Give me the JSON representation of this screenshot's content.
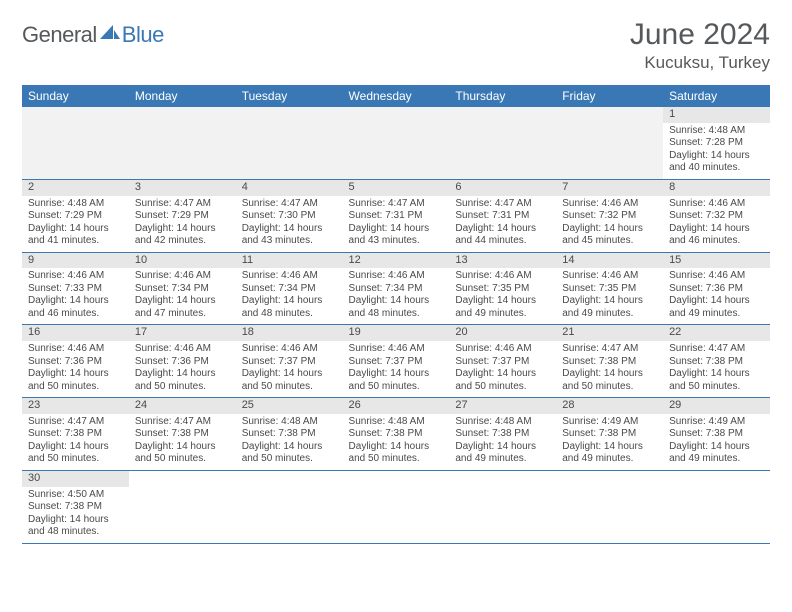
{
  "logo": {
    "text1": "General",
    "text2": "Blue"
  },
  "title": "June 2024",
  "location": "Kucuksu, Turkey",
  "colors": {
    "header_bg": "#3a78b5",
    "header_text": "#ffffff",
    "daynum_bg": "#e7e7e7",
    "border": "#3a78b5",
    "logo_gray": "#56595c",
    "logo_blue": "#3a78b5",
    "body_text": "#4a4a4a"
  },
  "weekdays": [
    "Sunday",
    "Monday",
    "Tuesday",
    "Wednesday",
    "Thursday",
    "Friday",
    "Saturday"
  ],
  "weeks": [
    [
      null,
      null,
      null,
      null,
      null,
      null,
      {
        "n": "1",
        "sr": "Sunrise: 4:48 AM",
        "ss": "Sunset: 7:28 PM",
        "d1": "Daylight: 14 hours",
        "d2": "and 40 minutes."
      }
    ],
    [
      {
        "n": "2",
        "sr": "Sunrise: 4:48 AM",
        "ss": "Sunset: 7:29 PM",
        "d1": "Daylight: 14 hours",
        "d2": "and 41 minutes."
      },
      {
        "n": "3",
        "sr": "Sunrise: 4:47 AM",
        "ss": "Sunset: 7:29 PM",
        "d1": "Daylight: 14 hours",
        "d2": "and 42 minutes."
      },
      {
        "n": "4",
        "sr": "Sunrise: 4:47 AM",
        "ss": "Sunset: 7:30 PM",
        "d1": "Daylight: 14 hours",
        "d2": "and 43 minutes."
      },
      {
        "n": "5",
        "sr": "Sunrise: 4:47 AM",
        "ss": "Sunset: 7:31 PM",
        "d1": "Daylight: 14 hours",
        "d2": "and 43 minutes."
      },
      {
        "n": "6",
        "sr": "Sunrise: 4:47 AM",
        "ss": "Sunset: 7:31 PM",
        "d1": "Daylight: 14 hours",
        "d2": "and 44 minutes."
      },
      {
        "n": "7",
        "sr": "Sunrise: 4:46 AM",
        "ss": "Sunset: 7:32 PM",
        "d1": "Daylight: 14 hours",
        "d2": "and 45 minutes."
      },
      {
        "n": "8",
        "sr": "Sunrise: 4:46 AM",
        "ss": "Sunset: 7:32 PM",
        "d1": "Daylight: 14 hours",
        "d2": "and 46 minutes."
      }
    ],
    [
      {
        "n": "9",
        "sr": "Sunrise: 4:46 AM",
        "ss": "Sunset: 7:33 PM",
        "d1": "Daylight: 14 hours",
        "d2": "and 46 minutes."
      },
      {
        "n": "10",
        "sr": "Sunrise: 4:46 AM",
        "ss": "Sunset: 7:34 PM",
        "d1": "Daylight: 14 hours",
        "d2": "and 47 minutes."
      },
      {
        "n": "11",
        "sr": "Sunrise: 4:46 AM",
        "ss": "Sunset: 7:34 PM",
        "d1": "Daylight: 14 hours",
        "d2": "and 48 minutes."
      },
      {
        "n": "12",
        "sr": "Sunrise: 4:46 AM",
        "ss": "Sunset: 7:34 PM",
        "d1": "Daylight: 14 hours",
        "d2": "and 48 minutes."
      },
      {
        "n": "13",
        "sr": "Sunrise: 4:46 AM",
        "ss": "Sunset: 7:35 PM",
        "d1": "Daylight: 14 hours",
        "d2": "and 49 minutes."
      },
      {
        "n": "14",
        "sr": "Sunrise: 4:46 AM",
        "ss": "Sunset: 7:35 PM",
        "d1": "Daylight: 14 hours",
        "d2": "and 49 minutes."
      },
      {
        "n": "15",
        "sr": "Sunrise: 4:46 AM",
        "ss": "Sunset: 7:36 PM",
        "d1": "Daylight: 14 hours",
        "d2": "and 49 minutes."
      }
    ],
    [
      {
        "n": "16",
        "sr": "Sunrise: 4:46 AM",
        "ss": "Sunset: 7:36 PM",
        "d1": "Daylight: 14 hours",
        "d2": "and 50 minutes."
      },
      {
        "n": "17",
        "sr": "Sunrise: 4:46 AM",
        "ss": "Sunset: 7:36 PM",
        "d1": "Daylight: 14 hours",
        "d2": "and 50 minutes."
      },
      {
        "n": "18",
        "sr": "Sunrise: 4:46 AM",
        "ss": "Sunset: 7:37 PM",
        "d1": "Daylight: 14 hours",
        "d2": "and 50 minutes."
      },
      {
        "n": "19",
        "sr": "Sunrise: 4:46 AM",
        "ss": "Sunset: 7:37 PM",
        "d1": "Daylight: 14 hours",
        "d2": "and 50 minutes."
      },
      {
        "n": "20",
        "sr": "Sunrise: 4:46 AM",
        "ss": "Sunset: 7:37 PM",
        "d1": "Daylight: 14 hours",
        "d2": "and 50 minutes."
      },
      {
        "n": "21",
        "sr": "Sunrise: 4:47 AM",
        "ss": "Sunset: 7:38 PM",
        "d1": "Daylight: 14 hours",
        "d2": "and 50 minutes."
      },
      {
        "n": "22",
        "sr": "Sunrise: 4:47 AM",
        "ss": "Sunset: 7:38 PM",
        "d1": "Daylight: 14 hours",
        "d2": "and 50 minutes."
      }
    ],
    [
      {
        "n": "23",
        "sr": "Sunrise: 4:47 AM",
        "ss": "Sunset: 7:38 PM",
        "d1": "Daylight: 14 hours",
        "d2": "and 50 minutes."
      },
      {
        "n": "24",
        "sr": "Sunrise: 4:47 AM",
        "ss": "Sunset: 7:38 PM",
        "d1": "Daylight: 14 hours",
        "d2": "and 50 minutes."
      },
      {
        "n": "25",
        "sr": "Sunrise: 4:48 AM",
        "ss": "Sunset: 7:38 PM",
        "d1": "Daylight: 14 hours",
        "d2": "and 50 minutes."
      },
      {
        "n": "26",
        "sr": "Sunrise: 4:48 AM",
        "ss": "Sunset: 7:38 PM",
        "d1": "Daylight: 14 hours",
        "d2": "and 50 minutes."
      },
      {
        "n": "27",
        "sr": "Sunrise: 4:48 AM",
        "ss": "Sunset: 7:38 PM",
        "d1": "Daylight: 14 hours",
        "d2": "and 49 minutes."
      },
      {
        "n": "28",
        "sr": "Sunrise: 4:49 AM",
        "ss": "Sunset: 7:38 PM",
        "d1": "Daylight: 14 hours",
        "d2": "and 49 minutes."
      },
      {
        "n": "29",
        "sr": "Sunrise: 4:49 AM",
        "ss": "Sunset: 7:38 PM",
        "d1": "Daylight: 14 hours",
        "d2": "and 49 minutes."
      }
    ],
    [
      {
        "n": "30",
        "sr": "Sunrise: 4:50 AM",
        "ss": "Sunset: 7:38 PM",
        "d1": "Daylight: 14 hours",
        "d2": "and 48 minutes."
      },
      null,
      null,
      null,
      null,
      null,
      null
    ]
  ]
}
